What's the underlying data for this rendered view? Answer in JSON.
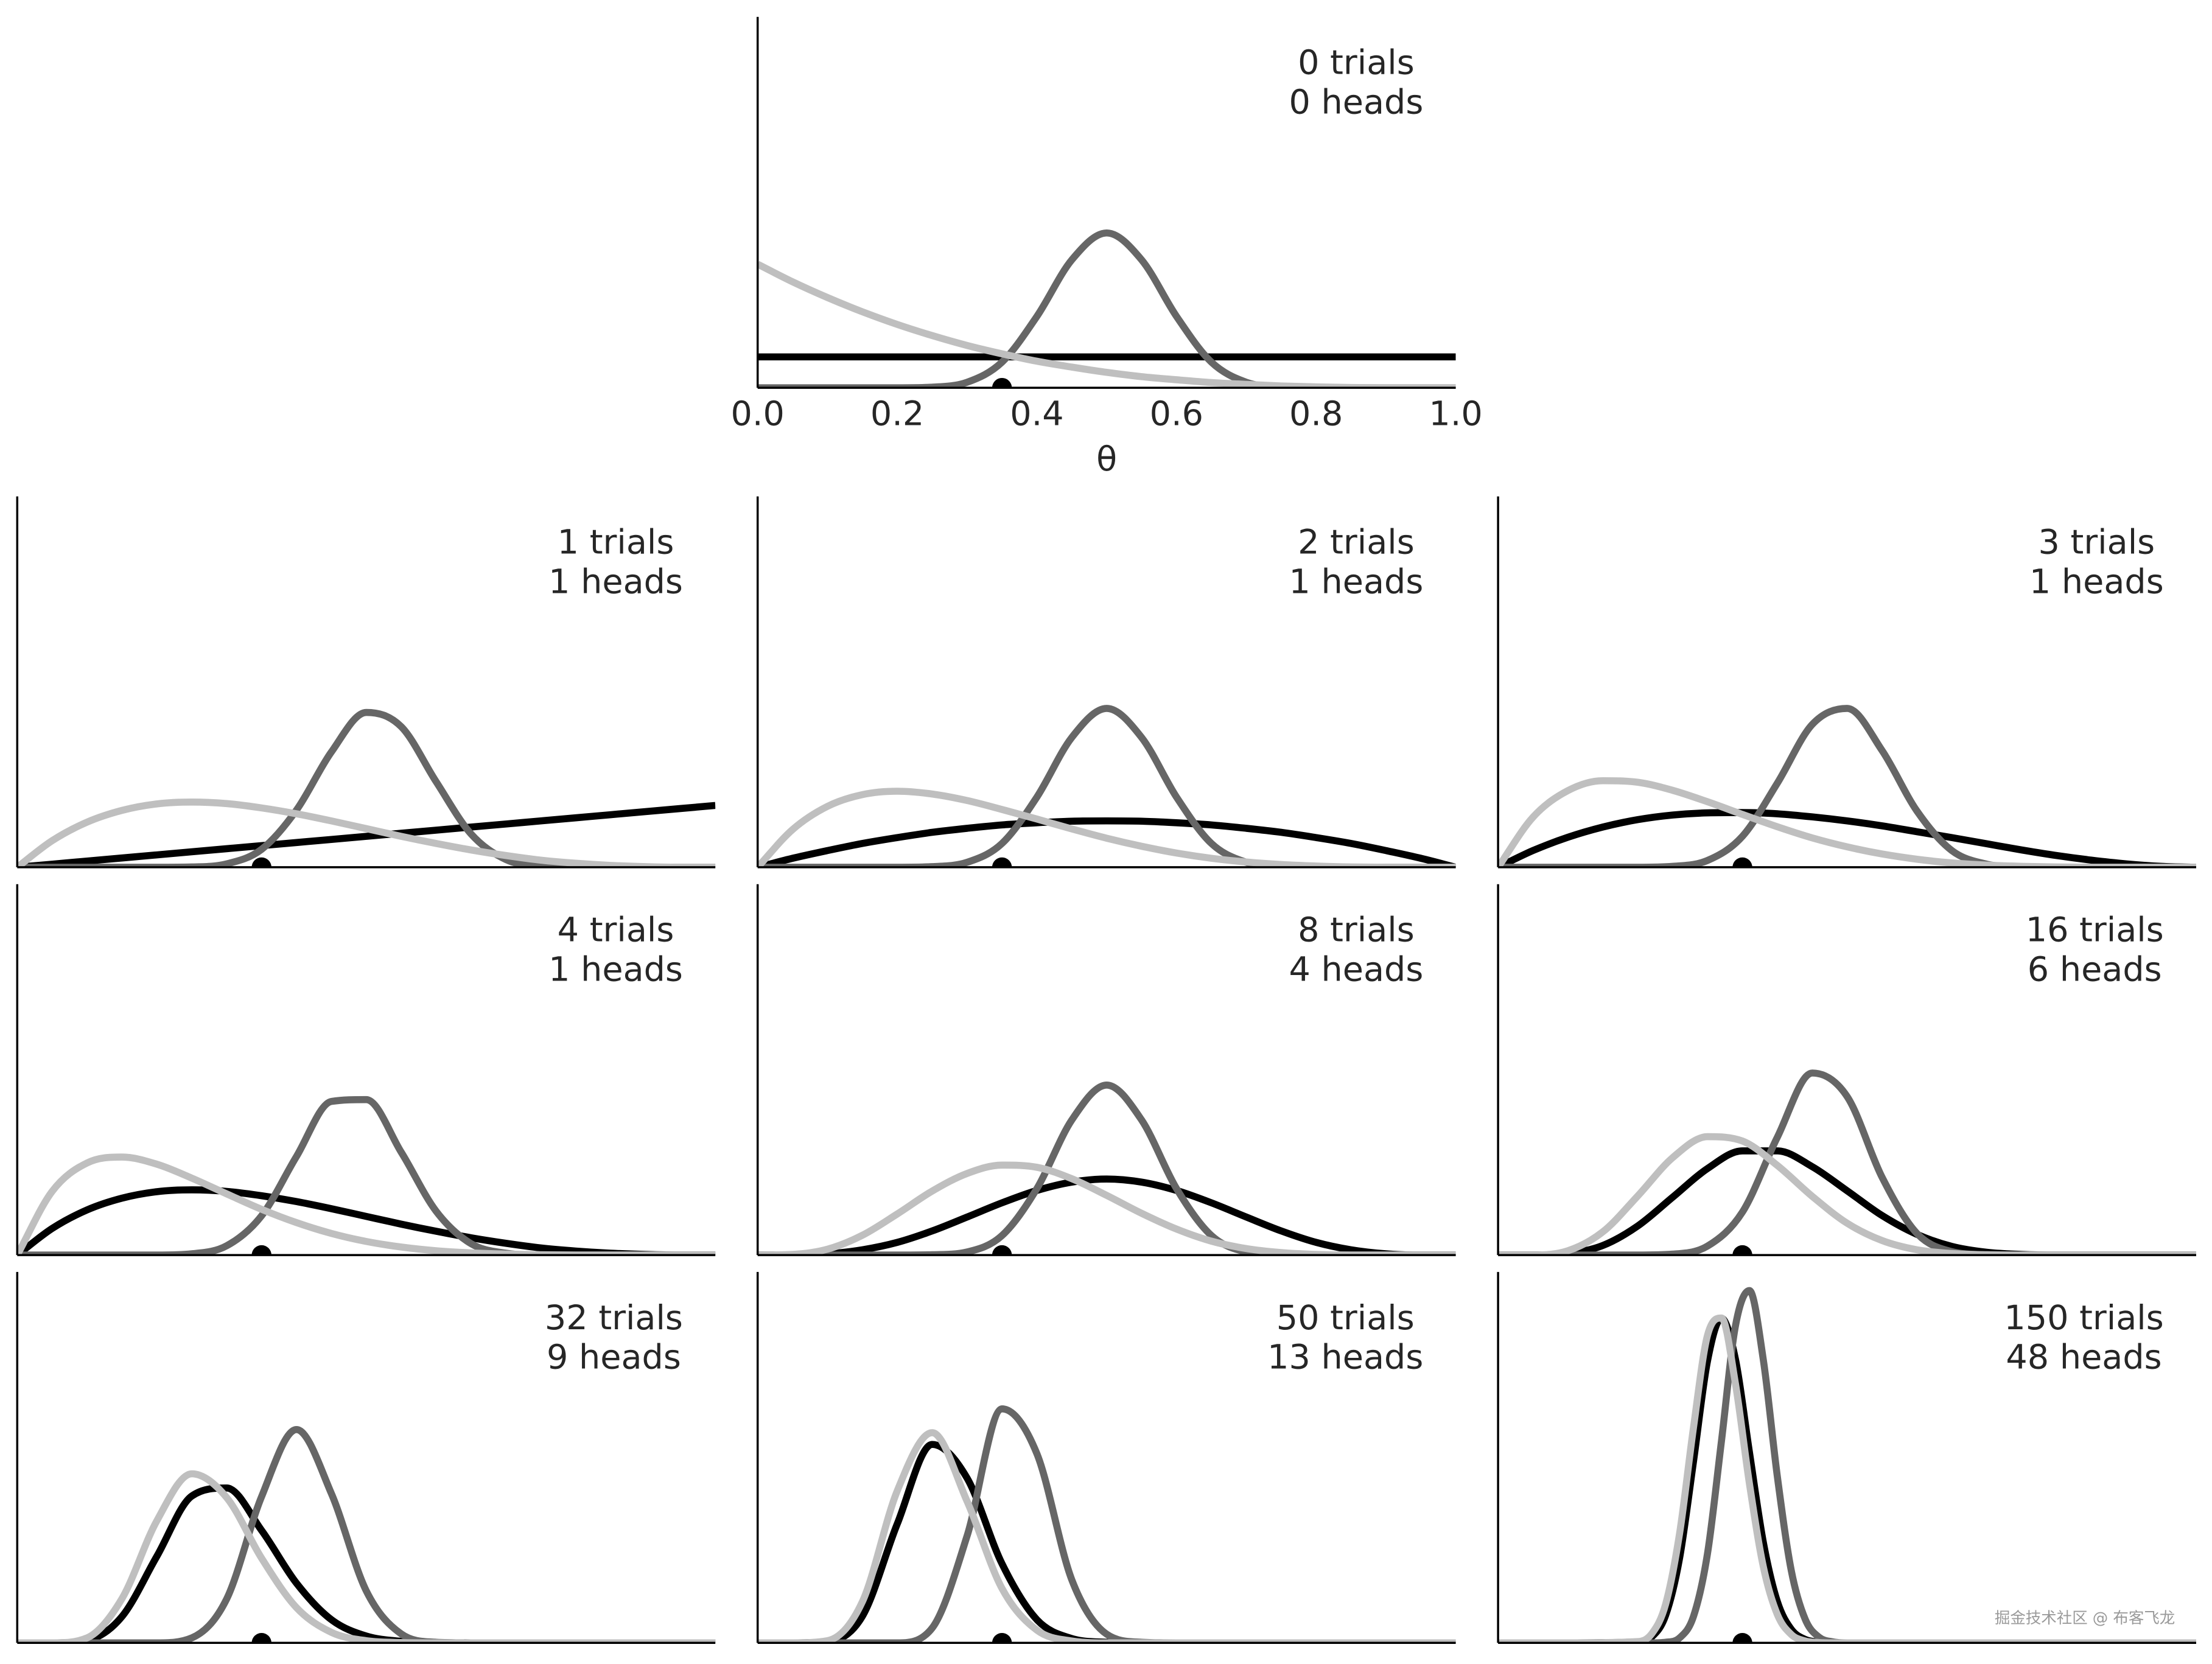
{
  "chart_data": [
    {
      "type": "line",
      "annotation": [
        "0 trials",
        "0 heads"
      ],
      "xlabel": "θ",
      "xlim": [
        0,
        1
      ],
      "ylim": [
        0,
        12
      ],
      "xticks": [
        {
          "value": 0,
          "label": "0.0"
        },
        {
          "value": 0.2,
          "label": "0.2"
        },
        {
          "value": 0.4,
          "label": "0.4"
        },
        {
          "value": 0.6,
          "label": "0.6"
        },
        {
          "value": 0.8,
          "label": "0.8"
        },
        {
          "value": 1,
          "label": "1.0"
        }
      ],
      "x": [
        0,
        0.05,
        0.1,
        0.15,
        0.2,
        0.25,
        0.3,
        0.35,
        0.4,
        0.45,
        0.5,
        0.55,
        0.6,
        0.65,
        0.7,
        0.75,
        0.8,
        0.85,
        0.9,
        0.95,
        1
      ],
      "series": [
        {
          "color": "#000000",
          "values": [
            1,
            1,
            1,
            1,
            1,
            1,
            1,
            1,
            1,
            1,
            1,
            1,
            1,
            1,
            1,
            1,
            1,
            1,
            1,
            1,
            1
          ]
        },
        {
          "color": "#666666",
          "values": [
            0,
            0,
            0,
            0,
            0,
            0.02,
            0.18,
            0.83,
            2.31,
            4.14,
            5.01,
            4.14,
            2.31,
            0.83,
            0.18,
            0.02,
            0,
            0,
            0,
            0,
            0
          ]
        },
        {
          "color": "#bfbfbf",
          "values": [
            4,
            3.43,
            2.92,
            2.46,
            2.05,
            1.69,
            1.37,
            1.1,
            0.86,
            0.67,
            0.5,
            0.36,
            0.26,
            0.17,
            0.11,
            0.06,
            0.03,
            0.01,
            0,
            0,
            0
          ]
        }
      ],
      "marker": {
        "x": 0.35,
        "y": 0
      }
    },
    {
      "type": "line",
      "annotation": [
        "1 trials",
        "1 heads"
      ],
      "xlim": [
        0,
        1
      ],
      "ylim": [
        0,
        12
      ],
      "x": [
        0,
        0.05,
        0.1,
        0.15,
        0.2,
        0.25,
        0.3,
        0.35,
        0.4,
        0.45,
        0.5,
        0.55,
        0.6,
        0.65,
        0.7,
        0.75,
        0.8,
        0.85,
        0.9,
        0.95,
        1
      ],
      "series": [
        {
          "color": "#000000",
          "values": [
            0,
            0.1,
            0.2,
            0.3,
            0.4,
            0.5,
            0.6,
            0.7,
            0.8,
            0.9,
            1,
            1.1,
            1.2,
            1.3,
            1.4,
            1.5,
            1.6,
            1.7,
            1.8,
            1.9,
            2
          ]
        },
        {
          "color": "#666666",
          "values": [
            0,
            0,
            0,
            0,
            0,
            0.01,
            0.11,
            0.58,
            1.85,
            3.73,
            5.01,
            4.55,
            2.77,
            1.08,
            0.25,
            0.03,
            0,
            0,
            0,
            0,
            0
          ]
        },
        {
          "color": "#bfbfbf",
          "values": [
            0,
            0.86,
            1.46,
            1.84,
            2.05,
            2.11,
            2.06,
            1.92,
            1.73,
            1.5,
            1.25,
            1,
            0.77,
            0.56,
            0.38,
            0.23,
            0.13,
            0.06,
            0.02,
            0,
            0
          ]
        }
      ],
      "marker": {
        "x": 0.35,
        "y": 0
      }
    },
    {
      "type": "line",
      "annotation": [
        "2 trials",
        "1 heads"
      ],
      "xlim": [
        0,
        1
      ],
      "ylim": [
        0,
        12
      ],
      "x": [
        0,
        0.05,
        0.1,
        0.15,
        0.2,
        0.25,
        0.3,
        0.35,
        0.4,
        0.45,
        0.5,
        0.55,
        0.6,
        0.65,
        0.7,
        0.75,
        0.8,
        0.85,
        0.9,
        0.95,
        1
      ],
      "series": [
        {
          "color": "#000000",
          "values": [
            0,
            0.29,
            0.54,
            0.77,
            0.96,
            1.13,
            1.26,
            1.37,
            1.44,
            1.49,
            1.5,
            1.49,
            1.44,
            1.37,
            1.26,
            1.13,
            0.96,
            0.77,
            0.54,
            0.29,
            0
          ]
        },
        {
          "color": "#666666",
          "values": [
            0,
            0,
            0,
            0,
            0,
            0.02,
            0.16,
            0.77,
            2.27,
            4.2,
            5.14,
            4.2,
            2.27,
            0.77,
            0.16,
            0.02,
            0,
            0,
            0,
            0,
            0
          ]
        },
        {
          "color": "#bfbfbf",
          "values": [
            0,
            1.22,
            1.97,
            2.35,
            2.46,
            2.37,
            2.16,
            1.87,
            1.56,
            1.24,
            0.94,
            0.68,
            0.46,
            0.29,
            0.17,
            0.09,
            0.04,
            0.01,
            0,
            0,
            0
          ]
        }
      ],
      "marker": {
        "x": 0.35,
        "y": 0
      }
    },
    {
      "type": "line",
      "annotation": [
        "3 trials",
        "1 heads"
      ],
      "xlim": [
        0,
        1
      ],
      "ylim": [
        0,
        12
      ],
      "x": [
        0,
        0.05,
        0.1,
        0.15,
        0.2,
        0.25,
        0.3,
        0.35,
        0.4,
        0.45,
        0.5,
        0.55,
        0.6,
        0.65,
        0.7,
        0.75,
        0.8,
        0.85,
        0.9,
        0.95,
        1
      ],
      "series": [
        {
          "color": "#000000",
          "values": [
            0,
            0.54,
            0.97,
            1.3,
            1.54,
            1.69,
            1.76,
            1.77,
            1.73,
            1.63,
            1.5,
            1.34,
            1.15,
            0.96,
            0.76,
            0.56,
            0.38,
            0.23,
            0.11,
            0.03,
            0
          ]
        },
        {
          "color": "#666666",
          "values": [
            0,
            0,
            0,
            0,
            0,
            0.03,
            0.22,
            1,
            2.72,
            4.62,
            5.14,
            3.78,
            1.82,
            0.54,
            0.1,
            0.01,
            0,
            0,
            0,
            0,
            0
          ]
        },
        {
          "color": "#bfbfbf",
          "values": [
            0,
            1.62,
            2.48,
            2.8,
            2.75,
            2.49,
            2.12,
            1.71,
            1.31,
            0.95,
            0.66,
            0.43,
            0.26,
            0.14,
            0.07,
            0.03,
            0.01,
            0,
            0,
            0,
            0
          ]
        }
      ],
      "marker": {
        "x": 0.35,
        "y": 0
      }
    },
    {
      "type": "line",
      "annotation": [
        "4 trials",
        "1 heads"
      ],
      "xlim": [
        0,
        1
      ],
      "ylim": [
        0,
        12
      ],
      "x": [
        0,
        0.05,
        0.1,
        0.15,
        0.2,
        0.25,
        0.3,
        0.35,
        0.4,
        0.45,
        0.5,
        0.55,
        0.6,
        0.65,
        0.7,
        0.75,
        0.8,
        0.85,
        0.9,
        0.95,
        1
      ],
      "series": [
        {
          "color": "#000000",
          "values": [
            0,
            0.86,
            1.46,
            1.84,
            2.05,
            2.11,
            2.06,
            1.92,
            1.73,
            1.5,
            1.25,
            1,
            0.77,
            0.56,
            0.38,
            0.23,
            0.13,
            0.06,
            0.02,
            0,
            0
          ]
        },
        {
          "color": "#666666",
          "values": [
            0,
            0,
            0,
            0,
            0,
            0.04,
            0.3,
            1.27,
            3.19,
            4.97,
            5.03,
            3.33,
            1.42,
            0.37,
            0.06,
            0,
            0,
            0,
            0,
            0,
            0
          ]
        },
        {
          "color": "#bfbfbf",
          "values": [
            0,
            2.06,
            2.98,
            3.17,
            2.94,
            2.49,
            1.98,
            1.48,
            1.05,
            0.7,
            0.44,
            0.26,
            0.14,
            0.07,
            0.03,
            0.01,
            0,
            0,
            0,
            0,
            0
          ]
        }
      ],
      "marker": {
        "x": 0.35,
        "y": 0
      }
    },
    {
      "type": "line",
      "annotation": [
        "8 trials",
        "4 heads"
      ],
      "xlim": [
        0,
        1
      ],
      "ylim": [
        0,
        12
      ],
      "x": [
        0,
        0.05,
        0.1,
        0.15,
        0.2,
        0.25,
        0.3,
        0.35,
        0.4,
        0.45,
        0.5,
        0.55,
        0.6,
        0.65,
        0.7,
        0.75,
        0.8,
        0.85,
        0.9,
        0.95,
        1
      ],
      "series": [
        {
          "color": "#000000",
          "values": [
            0,
            0,
            0.04,
            0.17,
            0.41,
            0.78,
            1.23,
            1.69,
            2.09,
            2.36,
            2.46,
            2.36,
            2.09,
            1.69,
            1.23,
            0.78,
            0.41,
            0.17,
            0.04,
            0,
            0
          ]
        },
        {
          "color": "#666666",
          "values": [
            0,
            0,
            0,
            0,
            0,
            0.01,
            0.1,
            0.63,
            2.15,
            4.37,
            5.5,
            4.37,
            2.15,
            0.63,
            0.1,
            0.01,
            0,
            0,
            0,
            0,
            0
          ]
        },
        {
          "color": "#bfbfbf",
          "values": [
            0,
            0.02,
            0.19,
            0.64,
            1.33,
            2.07,
            2.64,
            2.91,
            2.84,
            2.47,
            1.93,
            1.35,
            0.84,
            0.45,
            0.21,
            0.08,
            0.02,
            0,
            0,
            0,
            0
          ]
        }
      ],
      "marker": {
        "x": 0.35,
        "y": 0
      }
    },
    {
      "type": "line",
      "annotation": [
        "16 trials",
        "6 heads"
      ],
      "xlim": [
        0,
        1
      ],
      "ylim": [
        0,
        12
      ],
      "x": [
        0,
        0.05,
        0.1,
        0.15,
        0.2,
        0.25,
        0.3,
        0.35,
        0.4,
        0.45,
        0.5,
        0.55,
        0.6,
        0.65,
        0.7,
        0.75,
        0.8,
        0.85,
        0.9,
        0.95,
        1
      ],
      "series": [
        {
          "color": "#000000",
          "values": [
            0,
            0,
            0.05,
            0.31,
            0.94,
            1.87,
            2.8,
            3.37,
            3.37,
            2.86,
            2.08,
            1.28,
            0.67,
            0.28,
            0.09,
            0.02,
            0,
            0,
            0,
            0,
            0
          ]
        },
        {
          "color": "#666666",
          "values": [
            0,
            0,
            0,
            0,
            0,
            0.03,
            0.29,
            1.39,
            3.81,
            5.89,
            5.13,
            2.52,
            0.7,
            0.11,
            0.01,
            0,
            0,
            0,
            0,
            0,
            0
          ]
        },
        {
          "color": "#bfbfbf",
          "values": [
            0,
            0,
            0.14,
            0.75,
            1.91,
            3.15,
            3.83,
            3.69,
            2.9,
            1.9,
            1.03,
            0.47,
            0.17,
            0.05,
            0.01,
            0,
            0,
            0,
            0,
            0,
            0
          ]
        }
      ],
      "marker": {
        "x": 0.35,
        "y": 0
      }
    },
    {
      "type": "line",
      "annotation": [
        "32 trials",
        "9 heads"
      ],
      "xlim": [
        0,
        1
      ],
      "ylim": [
        0,
        12
      ],
      "x": [
        0,
        0.05,
        0.1,
        0.15,
        0.2,
        0.25,
        0.3,
        0.35,
        0.4,
        0.45,
        0.5,
        0.55,
        0.6,
        0.65,
        0.7,
        0.75,
        0.8,
        0.85,
        0.9,
        0.95,
        1
      ],
      "series": [
        {
          "color": "#000000",
          "values": [
            0,
            0,
            0.08,
            0.85,
            2.8,
            4.75,
            5.01,
            3.64,
            1.93,
            0.75,
            0.22,
            0.05,
            0.01,
            0,
            0,
            0,
            0,
            0,
            0,
            0,
            0
          ]
        },
        {
          "color": "#666666",
          "values": [
            0,
            0,
            0,
            0,
            0,
            0.16,
            1.42,
            4.73,
            6.9,
            4.83,
            1.68,
            0.29,
            0.02,
            0,
            0,
            0,
            0,
            0,
            0,
            0,
            0
          ]
        },
        {
          "color": "#bfbfbf",
          "values": [
            0,
            0,
            0.16,
            1.43,
            3.95,
            5.47,
            4.7,
            2.74,
            1.14,
            0.34,
            0.07,
            0.01,
            0,
            0,
            0,
            0,
            0,
            0,
            0,
            0,
            0
          ]
        }
      ],
      "marker": {
        "x": 0.35,
        "y": 0
      }
    },
    {
      "type": "line",
      "annotation": [
        "50 trials",
        "13 heads"
      ],
      "xlim": [
        0,
        1
      ],
      "ylim": [
        0,
        12
      ],
      "x": [
        0,
        0.05,
        0.1,
        0.15,
        0.2,
        0.25,
        0.3,
        0.35,
        0.4,
        0.45,
        0.5,
        0.55,
        0.6,
        0.65,
        0.7,
        0.75,
        0.8,
        0.85,
        0.9,
        0.95,
        1
      ],
      "series": [
        {
          "color": "#000000",
          "values": [
            0,
            0,
            0.04,
            0.86,
            3.85,
            6.42,
            5.33,
            2.56,
            0.75,
            0.14,
            0.02,
            0,
            0,
            0,
            0,
            0,
            0,
            0,
            0,
            0,
            0
          ]
        },
        {
          "color": "#666666",
          "values": [
            0,
            0,
            0,
            0,
            0,
            0.48,
            3.46,
            7.57,
            6.12,
            2.04,
            0.28,
            0.02,
            0,
            0,
            0,
            0,
            0,
            0,
            0,
            0,
            0
          ]
        },
        {
          "color": "#bfbfbf",
          "values": [
            0,
            0,
            0.07,
            1.33,
            4.92,
            6.8,
            4.58,
            1.76,
            0.41,
            0.06,
            0,
            0,
            0,
            0,
            0,
            0,
            0,
            0,
            0,
            0,
            0
          ]
        }
      ],
      "marker": {
        "x": 0.35,
        "y": 0
      }
    },
    {
      "type": "line",
      "annotation": [
        "150 trials",
        "48 heads"
      ],
      "xlim": [
        0,
        1
      ],
      "ylim": [
        0,
        12
      ],
      "x": [
        0,
        0.1,
        0.2,
        0.22,
        0.24,
        0.26,
        0.28,
        0.3,
        0.32,
        0.34,
        0.36,
        0.38,
        0.4,
        0.42,
        0.44,
        0.46,
        0.48,
        0.5,
        0.6,
        0.7,
        0.8,
        0.9,
        1
      ],
      "series": [
        {
          "color": "#000000",
          "values": [
            0,
            0,
            0.03,
            0.19,
            0.89,
            2.74,
            5.88,
            9.12,
            10.5,
            9.18,
            6.18,
            3.25,
            1.34,
            0.44,
            0.11,
            0.02,
            0,
            0,
            0,
            0,
            0,
            0,
            0
          ]
        },
        {
          "color": "#666666",
          "values": [
            0,
            0,
            0,
            0,
            0.02,
            0.16,
            0.86,
            2.89,
            6.53,
            10.25,
            11.4,
            9.15,
            5.39,
            2.34,
            0.76,
            0.18,
            0.03,
            0,
            0,
            0,
            0,
            0,
            0
          ]
        },
        {
          "color": "#bfbfbf",
          "values": [
            0,
            0,
            0.04,
            0.29,
            1.25,
            3.54,
            6.98,
            9.95,
            10.51,
            8.39,
            5.16,
            2.46,
            0.92,
            0.27,
            0.06,
            0.01,
            0,
            0,
            0,
            0,
            0,
            0,
            0
          ]
        }
      ],
      "marker": {
        "x": 0.35,
        "y": 0
      }
    }
  ],
  "watermark": "掘金技术社区 @ 布客飞龙"
}
